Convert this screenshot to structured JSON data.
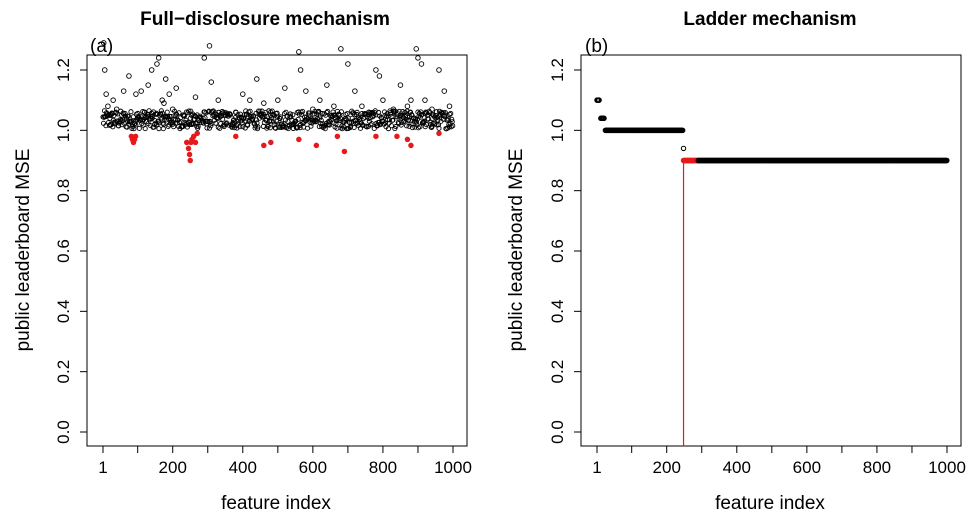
{
  "chart_data": [
    {
      "type": "scatter",
      "panel": "(a)",
      "title": "Full−disclosure mechanism",
      "xlabel": "feature index",
      "ylabel": "public leaderboard MSE",
      "xlim": [
        1,
        1000
      ],
      "ylim": [
        0.0,
        1.3
      ],
      "x_ticks": [
        1,
        200,
        400,
        600,
        800,
        1000
      ],
      "x_tick_labels": [
        "1",
        "200",
        "400",
        "600",
        "800",
        "1000"
      ],
      "y_ticks": [
        0.0,
        0.2,
        0.4,
        0.6,
        0.8,
        1.0,
        1.2
      ],
      "y_tick_labels": [
        "0.0",
        "0.2",
        "0.4",
        "0.6",
        "0.8",
        "1.0",
        "1.2"
      ],
      "colors": {
        "points": "#000000",
        "highlight": "#e41a1c"
      },
      "series": [
        {
          "marker": "open-circle",
          "color": "#000000",
          "x": [
            3,
            6,
            10,
            15,
            22,
            30,
            40,
            52,
            60,
            75,
            95,
            110,
            120,
            130,
            140,
            155,
            160,
            170,
            175,
            180,
            190,
            200,
            210,
            230,
            255,
            265,
            290,
            305,
            310,
            330,
            350,
            380,
            400,
            420,
            440,
            460,
            480,
            500,
            520,
            560,
            565,
            580,
            600,
            620,
            640,
            660,
            680,
            700,
            720,
            740,
            760,
            780,
            790,
            800,
            830,
            850,
            870,
            880,
            895,
            900,
            910,
            920,
            940,
            960,
            975,
            990
          ],
          "y": [
            1.29,
            1.2,
            1.12,
            1.08,
            1.05,
            1.1,
            1.07,
            1.03,
            1.13,
            1.18,
            1.12,
            1.13,
            1.06,
            1.15,
            1.2,
            1.22,
            1.24,
            1.1,
            1.09,
            1.17,
            1.12,
            1.07,
            1.14,
            1.05,
            1.02,
            1.11,
            1.24,
            1.28,
            1.16,
            1.1,
            1.05,
            1.06,
            1.12,
            1.1,
            1.17,
            1.09,
            1.05,
            1.1,
            1.14,
            1.26,
            1.2,
            1.13,
            1.07,
            1.1,
            1.15,
            1.08,
            1.27,
            1.22,
            1.13,
            1.08,
            1.06,
            1.2,
            1.18,
            1.1,
            1.07,
            1.15,
            1.08,
            1.1,
            1.27,
            1.24,
            1.22,
            1.1,
            1.07,
            1.2,
            1.13,
            1.08
          ]
        },
        {
          "marker": "filled-circle",
          "color": "#e41a1c",
          "x": [
            82,
            85,
            88,
            91,
            94,
            240,
            245,
            248,
            250,
            252,
            255,
            260,
            265,
            270,
            380,
            460,
            480,
            560,
            610,
            670,
            690,
            780,
            840,
            870,
            880,
            960
          ],
          "y": [
            0.98,
            0.97,
            0.96,
            0.97,
            0.98,
            0.96,
            0.94,
            0.92,
            0.9,
            0.96,
            0.97,
            0.98,
            0.96,
            0.99,
            0.98,
            0.95,
            0.96,
            0.97,
            0.95,
            0.98,
            0.93,
            0.98,
            0.98,
            0.97,
            0.95,
            0.99
          ]
        }
      ]
    },
    {
      "type": "scatter",
      "panel": "(b)",
      "title": "Ladder mechanism",
      "xlabel": "feature index",
      "ylabel": "public leaderboard MSE",
      "xlim": [
        1,
        1000
      ],
      "ylim": [
        0.0,
        1.3
      ],
      "x_ticks": [
        1,
        200,
        400,
        600,
        800,
        1000
      ],
      "x_tick_labels": [
        "1",
        "200",
        "400",
        "600",
        "800",
        "1000"
      ],
      "y_ticks": [
        0.0,
        0.2,
        0.4,
        0.6,
        0.8,
        1.0,
        1.2
      ],
      "y_tick_labels": [
        "0.0",
        "0.2",
        "0.4",
        "0.6",
        "0.8",
        "1.0",
        "1.2"
      ],
      "colors": {
        "points": "#000000",
        "highlight": "#e41a1c"
      },
      "segments": [
        {
          "x_start": 1,
          "x_end": 8,
          "y": 1.1,
          "color": "#000000"
        },
        {
          "x_start": 12,
          "x_end": 22,
          "y": 1.04,
          "color": "#000000"
        },
        {
          "x_start": 25,
          "x_end": 246,
          "y": 1.0,
          "color": "#000000"
        },
        {
          "x_start": 248,
          "x_end": 290,
          "y": 0.9,
          "color": "#e41a1c"
        },
        {
          "x_start": 290,
          "x_end": 1000,
          "y": 0.9,
          "color": "#000000"
        }
      ],
      "points": [
        {
          "x": 248,
          "y": 0.94,
          "color": "#000000"
        }
      ],
      "vline": {
        "x": 248,
        "color": "#e41a1c"
      }
    }
  ]
}
